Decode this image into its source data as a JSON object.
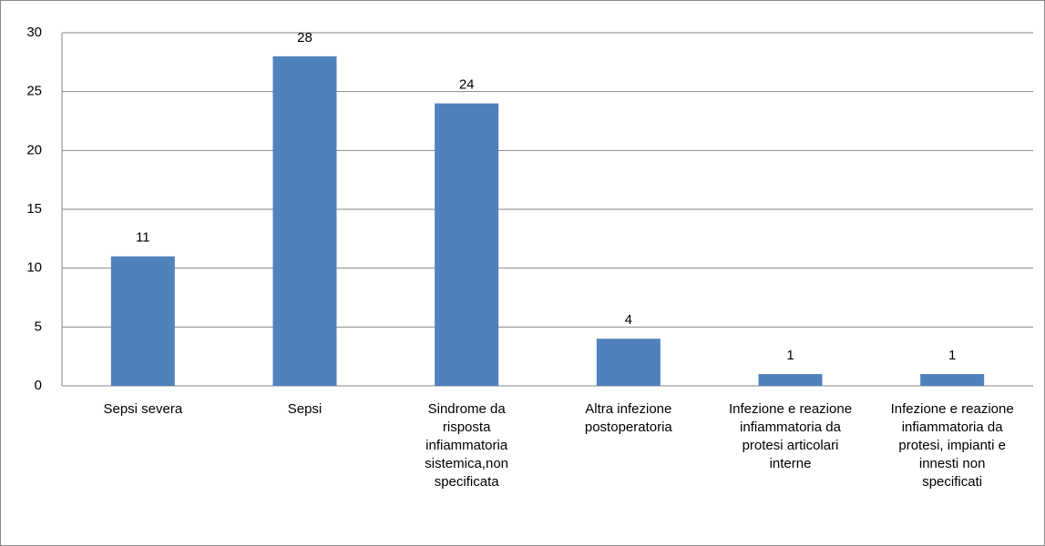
{
  "chart_data": {
    "type": "bar",
    "categories": [
      "Sepsi severa",
      "Sepsi",
      "Sindrome da risposta infiammatoria sistemica,non specificata",
      "Altra infezione postoperatoria",
      "Infezione e reazione infiammatoria da protesi articolari interne",
      "Infezione e reazione infiammatoria da protesi, impianti e innesti non specificati"
    ],
    "values": [
      11,
      28,
      24,
      4,
      1,
      1
    ],
    "color": "#4f81bd",
    "ylim": [
      0,
      30
    ],
    "yticks": [
      0,
      5,
      10,
      15,
      20,
      25,
      30
    ],
    "grid": true
  }
}
